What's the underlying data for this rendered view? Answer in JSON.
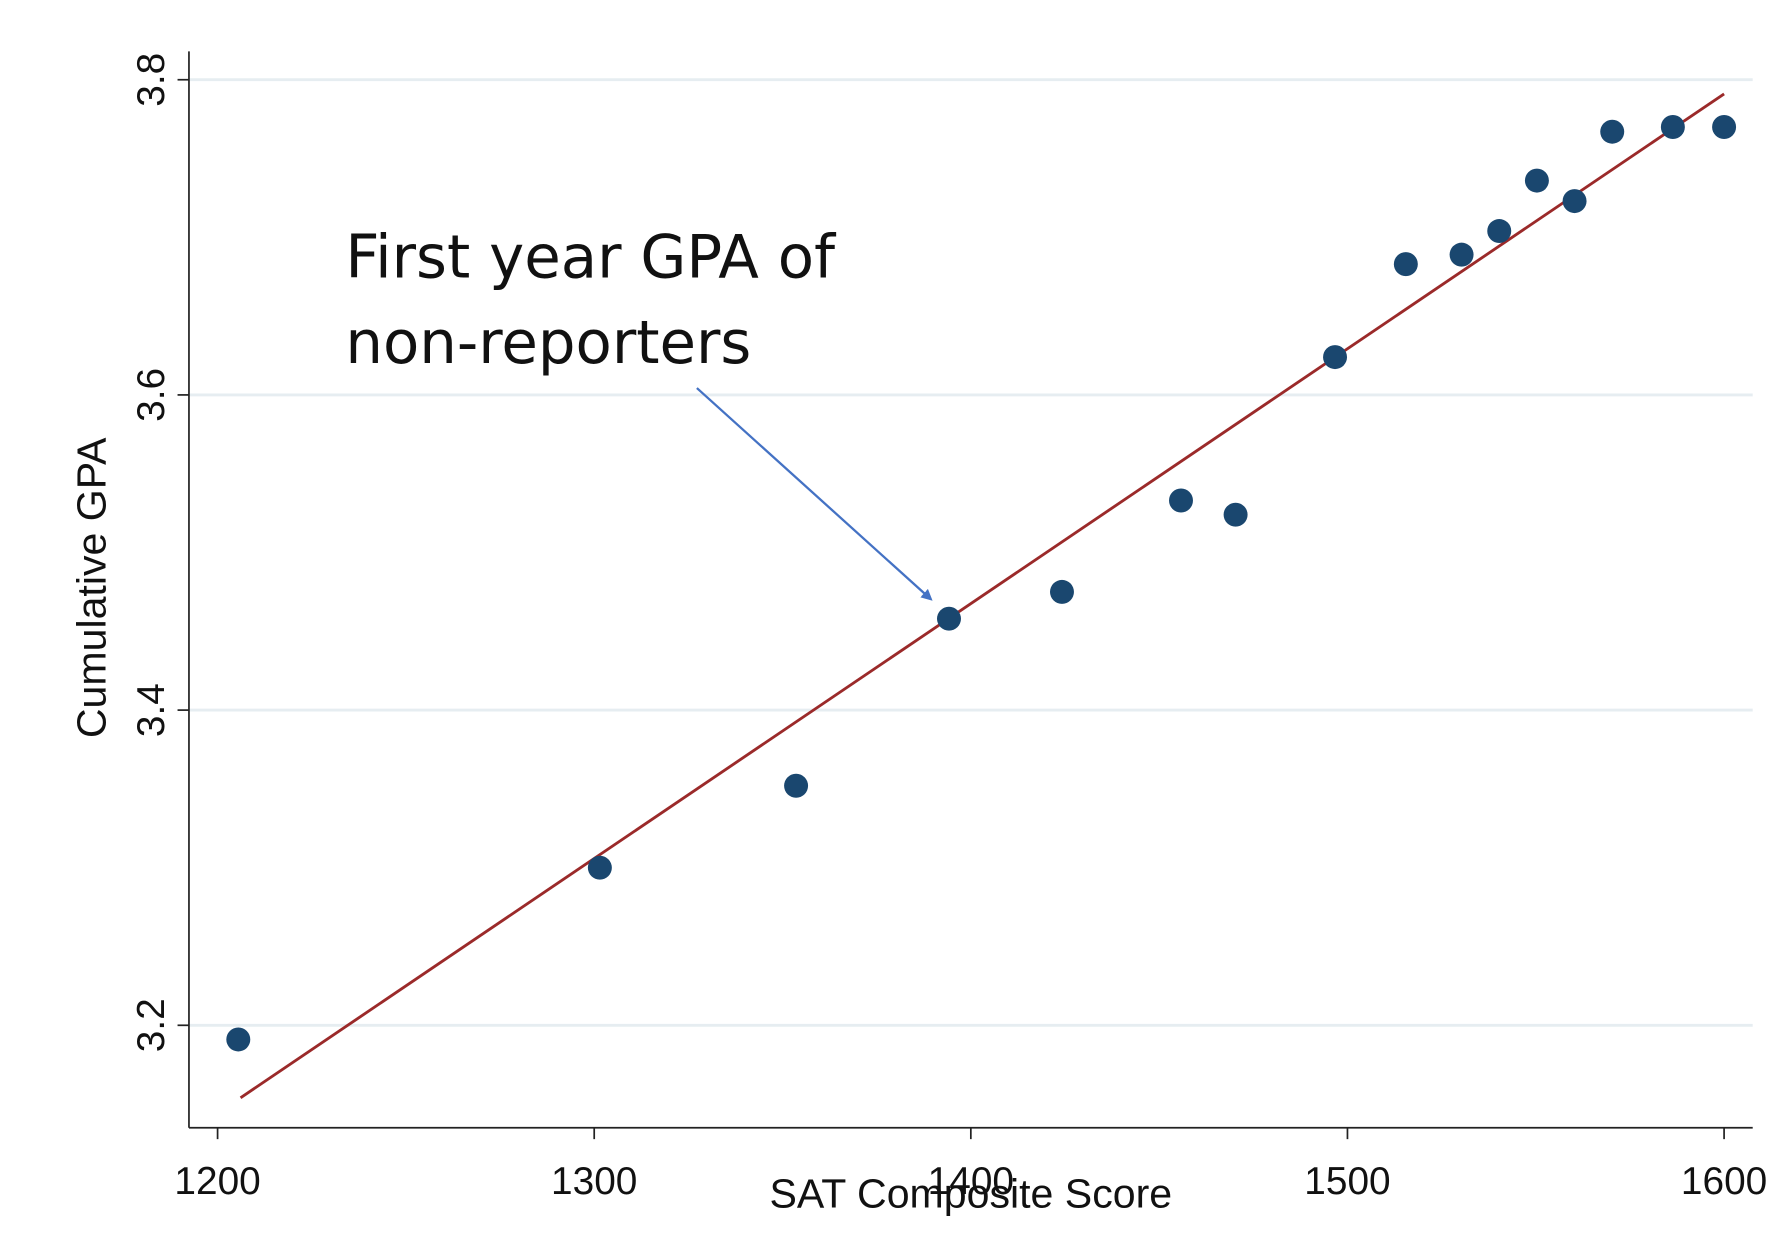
{
  "chart_data": {
    "type": "scatter",
    "x_label": "SAT Composite Score",
    "y_label": "Cumulative GPA",
    "annotation": [
      "First year GPA of",
      "non-reporters"
    ],
    "x": [
      1205.5,
      1301.5,
      1353.6,
      1394.2,
      1424.2,
      1455.8,
      1470.3,
      1496.7,
      1515.5,
      1530.3,
      1540.3,
      1550.3,
      1560.3,
      1570.3,
      1586.4,
      1600
    ],
    "values": [
      3.191,
      3.3,
      3.352,
      3.458,
      3.475,
      3.533,
      3.524,
      3.624,
      3.683,
      3.689,
      3.704,
      3.736,
      3.723,
      3.767,
      3.77,
      3.77
    ],
    "color": "#1a476f",
    "fit_line": {
      "x": [
        1206.1,
        1600
      ],
      "values": [
        3.154,
        3.791
      ],
      "color": "#9b2a2a"
    },
    "xlim": [
      1192.4,
      1607.6
    ],
    "ylim": [
      3.135,
      3.818
    ],
    "xticks": [
      1200,
      1300,
      1400,
      1500,
      1600
    ],
    "yticks": [
      3.2,
      3.4,
      3.6,
      3.8
    ],
    "grid": true
  }
}
